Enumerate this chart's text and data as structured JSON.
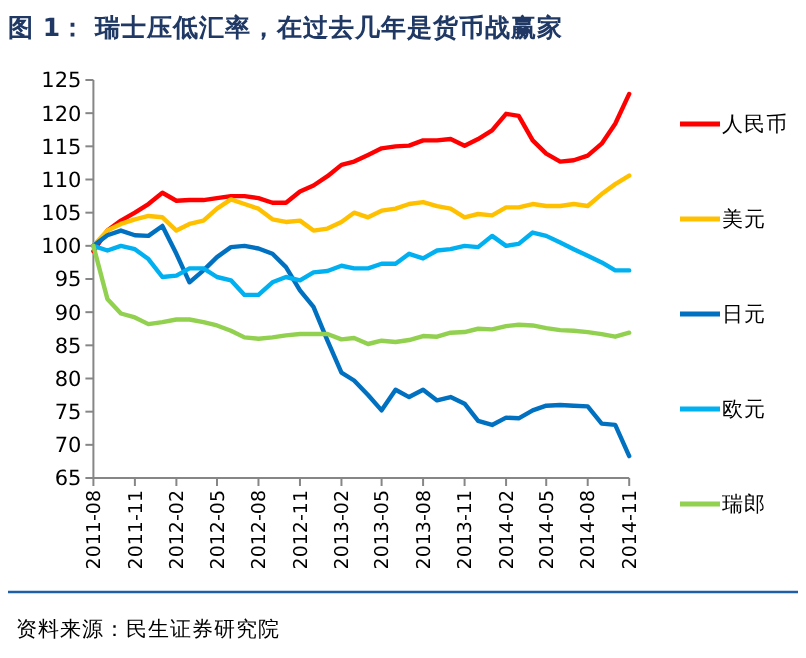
{
  "chart_data": {
    "type": "line",
    "title": "图 1：  瑞士压低汇率，在过去几年是货币战赢家",
    "annotations": [
      "资料来源：民生证券研究院"
    ],
    "x": [
      "2011-08",
      "2011-09",
      "2011-10",
      "2011-11",
      "2011-12",
      "2012-01",
      "2012-02",
      "2012-03",
      "2012-04",
      "2012-05",
      "2012-06",
      "2012-07",
      "2012-08",
      "2012-09",
      "2012-10",
      "2012-11",
      "2012-12",
      "2013-01",
      "2013-02",
      "2013-03",
      "2013-04",
      "2013-05",
      "2013-06",
      "2013-07",
      "2013-08",
      "2013-09",
      "2013-10",
      "2013-11",
      "2013-12",
      "2014-01",
      "2014-02",
      "2014-03",
      "2014-04",
      "2014-05",
      "2014-06",
      "2014-07",
      "2014-08",
      "2014-09",
      "2014-10",
      "2014-11"
    ],
    "series": [
      {
        "name": "人民币",
        "color": "#ff0000",
        "values": [
          99.2,
          102.3,
          103.8,
          105,
          106.3,
          108,
          106.8,
          106.9,
          106.9,
          107.2,
          107.5,
          107.5,
          107.2,
          106.5,
          106.5,
          108.2,
          109.1,
          110.5,
          112.2,
          112.7,
          113.7,
          114.7,
          115,
          115.1,
          115.9,
          115.9,
          116.1,
          115.1,
          116.1,
          117.4,
          119.9,
          119.6,
          115.9,
          113.9,
          112.7,
          112.9,
          113.6,
          115.4,
          118.4,
          122.9
        ]
      },
      {
        "name": "美元",
        "color": "#ffc000",
        "values": [
          100,
          102.3,
          103.3,
          104,
          104.5,
          104.3,
          102.3,
          103.3,
          103.8,
          105.6,
          107,
          106.3,
          105.6,
          104,
          103.6,
          103.8,
          102.3,
          102.6,
          103.6,
          105,
          104.3,
          105.3,
          105.6,
          106.3,
          106.6,
          106,
          105.6,
          104.3,
          104.8,
          104.6,
          105.8,
          105.8,
          106.3,
          106,
          106,
          106.3,
          106,
          107.8,
          109.3,
          110.6
        ]
      },
      {
        "name": "日元",
        "color": "#0070c0",
        "values": [
          100,
          101.6,
          102.3,
          101.6,
          101.5,
          103,
          98.8,
          94.5,
          96.3,
          98.3,
          99.8,
          100,
          99.6,
          98.8,
          96.8,
          93.3,
          90.8,
          85.7,
          80.9,
          79.7,
          77.5,
          75.2,
          78.3,
          77.2,
          78.3,
          76.7,
          77.2,
          76.2,
          73.6,
          73,
          74.1,
          74,
          75.2,
          75.9,
          76,
          75.9,
          75.8,
          73.2,
          73,
          68.3
        ]
      },
      {
        "name": "欧元",
        "color": "#00b0f0",
        "values": [
          100,
          99.3,
          100,
          99.5,
          98,
          95.3,
          95.5,
          96.6,
          96.6,
          95.3,
          94.8,
          92.6,
          92.6,
          94.5,
          95.3,
          94.8,
          96,
          96.2,
          97,
          96.6,
          96.6,
          97.3,
          97.3,
          98.8,
          98.1,
          99.3,
          99.5,
          100,
          99.8,
          101.5,
          100,
          100.3,
          102,
          101.5,
          100.5,
          99.5,
          98.5,
          97.5,
          96.3,
          96.3
        ]
      },
      {
        "name": "瑞郎",
        "color": "#92d050",
        "values": [
          100,
          92,
          89.8,
          89.2,
          88.2,
          88.5,
          88.9,
          88.9,
          88.5,
          88,
          87.2,
          86.2,
          86,
          86.2,
          86.5,
          86.7,
          86.7,
          86.7,
          85.9,
          86.1,
          85.2,
          85.7,
          85.5,
          85.8,
          86.4,
          86.3,
          86.9,
          87,
          87.5,
          87.4,
          87.9,
          88.1,
          88,
          87.6,
          87.3,
          87.2,
          87,
          86.7,
          86.3,
          86.9
        ]
      }
    ],
    "xlim": [
      "2011-08",
      "2014-11"
    ],
    "xticks": [
      "2011-08",
      "2011-11",
      "2012-02",
      "2012-05",
      "2012-08",
      "2012-11",
      "2013-02",
      "2013-05",
      "2013-08",
      "2013-11",
      "2014-02",
      "2014-05",
      "2014-08",
      "2014-11"
    ],
    "ylim": [
      65,
      125
    ],
    "yticks": [
      65,
      70,
      75,
      80,
      85,
      90,
      95,
      100,
      105,
      110,
      115,
      120,
      125
    ],
    "grid": false,
    "legend": "right",
    "marker": "none",
    "line_style": "solid"
  }
}
